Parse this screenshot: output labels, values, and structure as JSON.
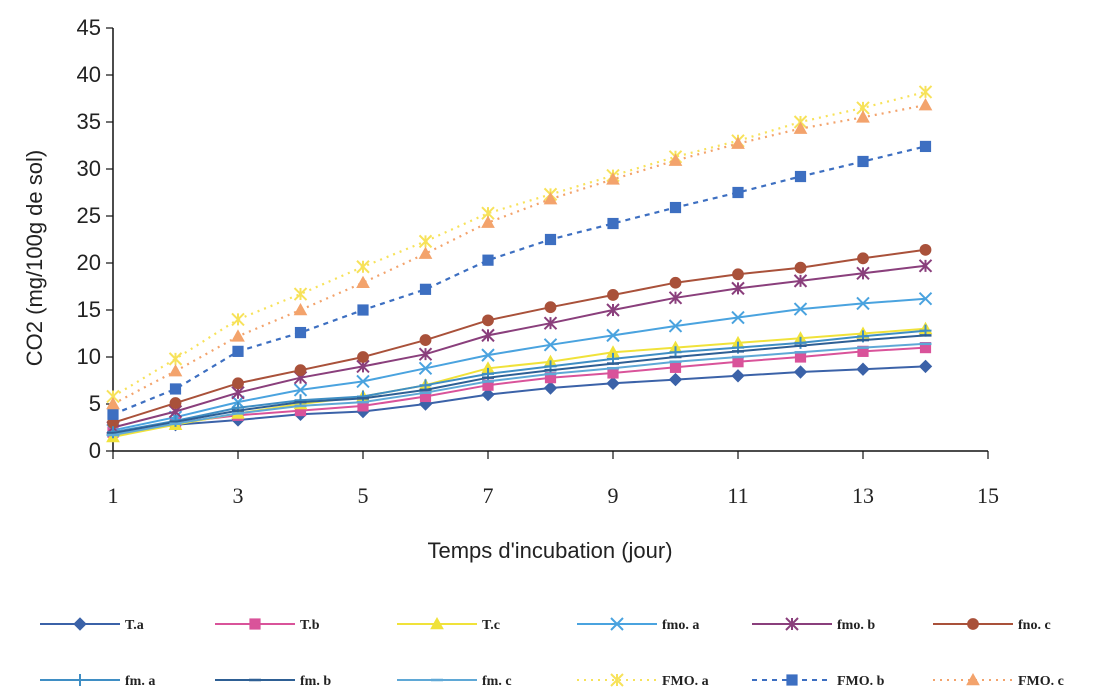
{
  "chart_data": {
    "type": "line",
    "title": "",
    "xlabel": "Temps d'incubation (jour)",
    "ylabel": "CO2 (mg/100g de sol)",
    "xlim": [
      1,
      15
    ],
    "ylim": [
      0,
      45
    ],
    "x_ticks": [
      "1",
      "3",
      "5",
      "7",
      "9",
      "11",
      "13",
      "15"
    ],
    "y_ticks": [
      "0",
      "5",
      "10",
      "15",
      "20",
      "25",
      "30",
      "35",
      "40",
      "45"
    ],
    "grid": false,
    "legend_position": "bottom",
    "x": [
      1,
      2,
      3,
      4,
      5,
      6,
      7,
      8,
      9,
      10,
      11,
      12,
      13,
      14
    ],
    "series": [
      {
        "name": "T.a",
        "color": "#3b62a8",
        "marker": "diamond",
        "dash": "solid",
        "values": [
          1.8,
          2.8,
          3.3,
          3.9,
          4.2,
          5.0,
          6.0,
          6.7,
          7.2,
          7.6,
          8.0,
          8.4,
          8.7,
          9.0
        ]
      },
      {
        "name": "T.b",
        "color": "#d9539a",
        "marker": "square",
        "dash": "solid",
        "values": [
          2.0,
          3.0,
          3.8,
          4.3,
          4.8,
          5.8,
          7.0,
          7.8,
          8.3,
          8.9,
          9.5,
          10.0,
          10.6,
          11.0
        ]
      },
      {
        "name": "T.c",
        "color": "#f0e23a",
        "marker": "triangle",
        "dash": "solid",
        "values": [
          1.5,
          2.8,
          4.0,
          5.0,
          5.8,
          7.0,
          8.8,
          9.5,
          10.5,
          11.0,
          11.5,
          12.0,
          12.5,
          13.0
        ]
      },
      {
        "name": "fmo. a",
        "color": "#4aa3df",
        "marker": "x",
        "dash": "solid",
        "values": [
          2.2,
          3.6,
          5.2,
          6.5,
          7.4,
          8.8,
          10.2,
          11.3,
          12.3,
          13.3,
          14.2,
          15.1,
          15.7,
          16.2
        ]
      },
      {
        "name": "fmo. b",
        "color": "#8a3f7c",
        "marker": "star",
        "dash": "solid",
        "values": [
          2.5,
          4.2,
          6.2,
          7.8,
          9.0,
          10.3,
          12.3,
          13.6,
          15.0,
          16.3,
          17.3,
          18.1,
          18.9,
          19.7
        ]
      },
      {
        "name": "fno. c",
        "color": "#a9513a",
        "marker": "circle",
        "dash": "solid",
        "values": [
          3.0,
          5.1,
          7.2,
          8.6,
          10.0,
          11.8,
          13.9,
          15.3,
          16.6,
          17.9,
          18.8,
          19.5,
          20.5,
          21.4
        ]
      },
      {
        "name": "fm. a",
        "color": "#3f8ec4",
        "marker": "plus",
        "dash": "solid",
        "values": [
          2.0,
          3.2,
          4.6,
          5.4,
          5.8,
          7.0,
          8.2,
          9.0,
          9.8,
          10.5,
          11.0,
          11.5,
          12.2,
          12.8
        ]
      },
      {
        "name": "fm. b",
        "color": "#2e5f94",
        "marker": "dash",
        "dash": "solid",
        "values": [
          1.9,
          3.1,
          4.3,
          5.2,
          5.6,
          6.5,
          7.8,
          8.6,
          9.3,
          10.0,
          10.6,
          11.2,
          11.8,
          12.3
        ]
      },
      {
        "name": "fm. c",
        "color": "#5fa8d6",
        "marker": "dash",
        "dash": "solid",
        "values": [
          1.7,
          2.9,
          4.0,
          4.8,
          5.2,
          6.2,
          7.4,
          8.2,
          8.8,
          9.5,
          10.0,
          10.5,
          11.0,
          11.4
        ]
      },
      {
        "name": "FMO. a",
        "color": "#f7e25a",
        "marker": "star",
        "dash": "dotted",
        "values": [
          5.8,
          9.8,
          14.0,
          16.7,
          19.6,
          22.3,
          25.3,
          27.3,
          29.3,
          31.3,
          33.0,
          35.0,
          36.5,
          38.2
        ]
      },
      {
        "name": "FMO. b",
        "color": "#3d6fc1",
        "marker": "square",
        "dash": "dashed",
        "values": [
          3.9,
          6.6,
          10.6,
          12.6,
          15.0,
          17.2,
          20.3,
          22.5,
          24.2,
          25.9,
          27.5,
          29.2,
          30.8,
          32.4
        ]
      },
      {
        "name": "FMO. c",
        "color": "#f3a36c",
        "marker": "triangle",
        "dash": "dotted",
        "values": [
          5.0,
          8.5,
          12.2,
          15.0,
          17.9,
          21.0,
          24.3,
          26.8,
          28.9,
          30.9,
          32.7,
          34.3,
          35.5,
          36.8
        ]
      }
    ]
  }
}
